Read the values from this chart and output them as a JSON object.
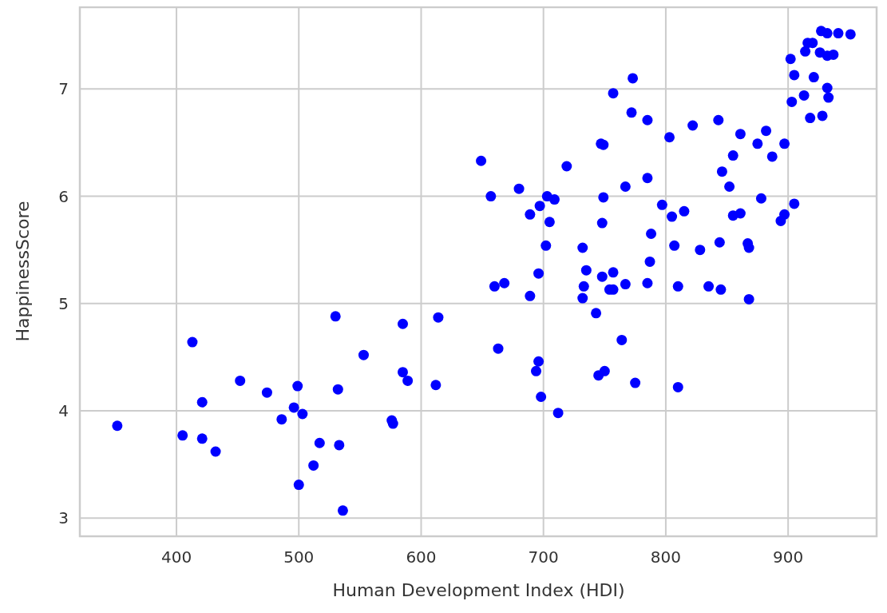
{
  "chart_data": {
    "type": "scatter",
    "xlabel": "Human Development Index (HDI)",
    "ylabel": "HappinessScore",
    "xlim": [
      321,
      973
    ],
    "ylim": [
      2.83,
      7.77
    ],
    "xticks": [
      400,
      500,
      600,
      700,
      800,
      900
    ],
    "yticks": [
      3,
      4,
      5,
      6,
      7
    ],
    "grid": true,
    "marker": "circle",
    "series": [
      {
        "color": "#0000ff",
        "x": [
          351.6,
          405,
          421,
          432,
          413,
          421,
          452,
          474,
          499,
          496,
          486,
          503,
          517,
          512,
          500,
          533,
          532,
          536,
          530,
          553,
          585,
          585,
          589,
          576,
          577,
          614,
          612,
          663,
          649,
          657,
          680,
          660,
          668,
          689,
          697,
          703,
          709,
          719,
          705,
          702,
          696,
          689,
          696,
          694,
          698,
          712,
          732,
          735,
          733,
          732,
          743,
          747,
          749,
          757,
          749,
          748,
          748,
          757,
          754,
          757,
          767,
          745,
          750,
          775,
          764,
          767,
          772,
          773,
          785,
          785,
          785,
          787,
          788,
          797,
          803,
          805,
          807,
          810,
          810,
          815,
          822,
          828,
          835,
          843,
          844,
          845,
          846,
          852,
          855,
          855,
          861,
          861,
          867,
          868,
          868,
          875,
          878,
          882,
          887,
          894,
          897,
          897,
          905,
          902,
          905,
          903,
          913,
          918,
          914,
          916,
          920,
          921,
          926,
          927,
          932,
          928,
          932,
          933,
          932,
          937,
          941,
          951
        ],
        "values": [
          3.86,
          3.77,
          3.74,
          3.62,
          4.64,
          4.08,
          4.28,
          4.17,
          4.23,
          4.03,
          3.92,
          3.97,
          3.7,
          3.49,
          3.31,
          3.68,
          4.2,
          3.07,
          4.88,
          4.52,
          4.81,
          4.36,
          4.28,
          3.91,
          3.88,
          4.87,
          4.24,
          4.58,
          6.33,
          6.0,
          6.07,
          5.16,
          5.19,
          5.83,
          5.91,
          6.0,
          5.97,
          6.28,
          5.76,
          5.54,
          5.28,
          5.07,
          4.46,
          4.37,
          4.13,
          3.98,
          5.52,
          5.31,
          5.16,
          5.05,
          4.91,
          6.49,
          6.48,
          6.96,
          5.99,
          5.75,
          5.25,
          5.29,
          5.13,
          5.13,
          5.18,
          4.33,
          4.37,
          4.26,
          4.66,
          6.09,
          6.78,
          7.1,
          6.71,
          6.17,
          5.19,
          5.39,
          5.65,
          5.92,
          6.55,
          5.81,
          5.54,
          5.16,
          4.22,
          5.86,
          6.66,
          5.5,
          5.16,
          6.71,
          5.57,
          5.13,
          6.23,
          6.09,
          6.38,
          5.82,
          5.84,
          6.58,
          5.56,
          5.52,
          5.04,
          6.49,
          5.98,
          6.61,
          6.37,
          5.77,
          5.83,
          6.49,
          5.93,
          7.28,
          7.13,
          6.88,
          6.94,
          6.73,
          7.35,
          7.43,
          7.43,
          7.11,
          7.34,
          7.54,
          7.52,
          6.75,
          7.01,
          6.92,
          7.31,
          7.32,
          7.52,
          7.51
        ]
      }
    ]
  }
}
